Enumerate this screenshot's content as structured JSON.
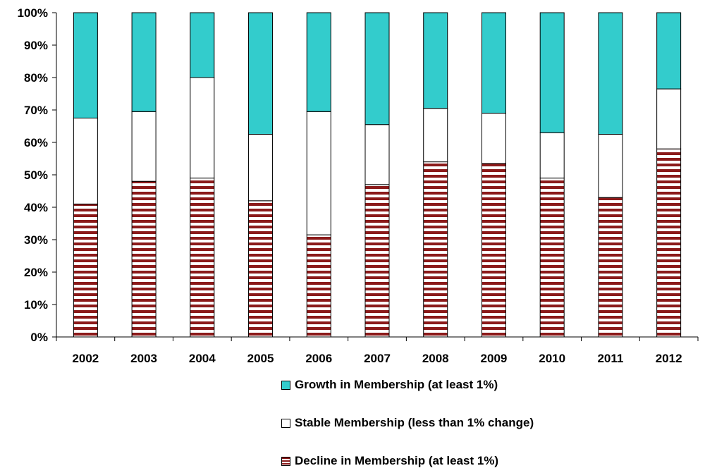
{
  "chart_data": {
    "type": "bar",
    "stacked": true,
    "percent": true,
    "categories": [
      "2002",
      "2003",
      "2004",
      "2005",
      "2006",
      "2007",
      "2008",
      "2009",
      "2010",
      "2011",
      "2012"
    ],
    "series": [
      {
        "name": "Decline in Membership (at least 1%)",
        "color": "#8b1a1a",
        "pattern": "horizontal-stripes",
        "values": [
          41,
          48,
          49,
          42,
          31.5,
          47,
          54,
          53.5,
          49,
          43,
          58
        ]
      },
      {
        "name": "Stable Membership (less than 1% change)",
        "color": "#ffffff",
        "values": [
          26.5,
          21.5,
          31,
          20.5,
          38,
          18.5,
          16.5,
          15.5,
          14,
          19.5,
          18.5
        ]
      },
      {
        "name": "Growth in Membership (at least 1%)",
        "color": "#33cccc",
        "values": [
          32.5,
          30.5,
          20,
          37.5,
          30.5,
          34.5,
          29.5,
          31,
          37,
          37.5,
          23.5
        ]
      }
    ],
    "ylim": [
      0,
      100
    ],
    "yticks": [
      "0%",
      "10%",
      "20%",
      "30%",
      "40%",
      "50%",
      "60%",
      "70%",
      "80%",
      "90%",
      "100%"
    ],
    "grid": false,
    "legend_position": "bottom"
  }
}
